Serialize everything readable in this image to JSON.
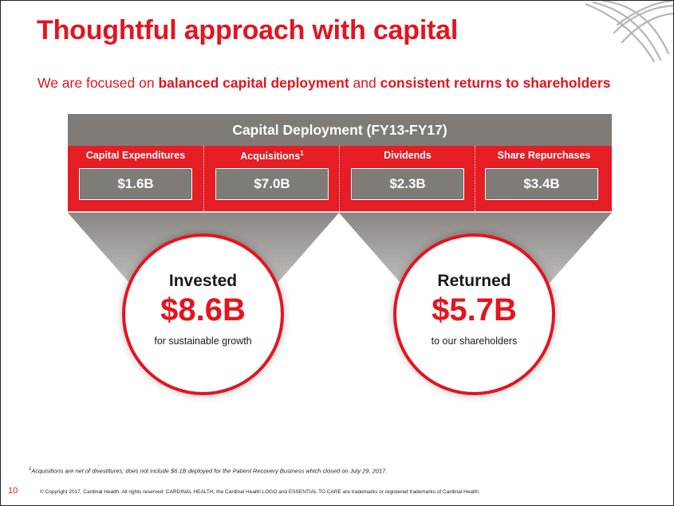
{
  "slide": {
    "title": "Thoughtful approach with capital",
    "subtitle": {
      "part1": "We are focused on ",
      "bold1": "balanced capital deployment",
      "part2": " and ",
      "bold2": "consistent returns to shareholders"
    },
    "page_number": "10",
    "colors": {
      "brand_red": "#e4141f",
      "panel_gray": "#7f7b77",
      "light_gray": "#e2e0de"
    }
  },
  "deployment": {
    "header": "Capital Deployment (FY13-FY17)",
    "columns": [
      {
        "label": "Capital Expenditures",
        "value": "$1.6B"
      },
      {
        "label": "Acquisitions",
        "superscript": "1",
        "value": "$7.0B"
      },
      {
        "label": "Dividends",
        "value": "$2.3B"
      },
      {
        "label": "Share Repurchases",
        "value": "$3.4B"
      }
    ]
  },
  "summary": {
    "invested": {
      "heading": "Invested",
      "amount": "$8.6B",
      "caption": "for sustainable growth"
    },
    "returned": {
      "heading": "Returned",
      "amount": "$5.7B",
      "caption": "to our shareholders"
    }
  },
  "footer": {
    "footnote_marker": "1",
    "footnote": "Acquisitions are net of divestitures; does not include $6.1B deployed for the Patient Recovery Business which closed on July 29, 2017.",
    "copyright": "© Copyright 2017, Cardinal Health. All rights reserved. CARDINAL HEALTH, the Cardinal Health LOGO and ESSENTIAL TO CARE are trademarks or registered trademarks of Cardinal Health."
  }
}
